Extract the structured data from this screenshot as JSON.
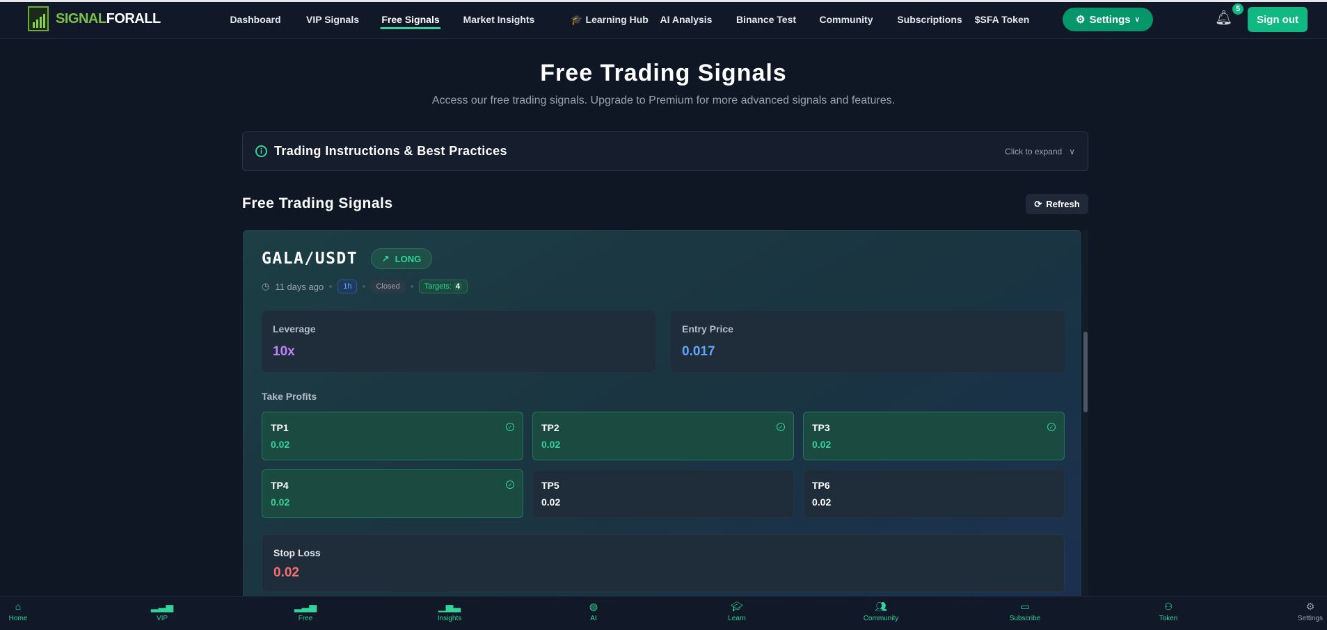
{
  "brand": {
    "part1": "SIGNAL",
    "part2": "FORALL"
  },
  "nav": {
    "items": [
      "Dashboard",
      "VIP Signals",
      "Free Signals",
      "Market Insights",
      "🎓 Learning Hub",
      "AI Analysis",
      "Binance Test",
      "Community",
      "Subscriptions",
      "$SFA Token"
    ],
    "active": "Free Signals",
    "settings": "Settings",
    "notifications": "5",
    "signout": "Sign out"
  },
  "page": {
    "title": "Free Trading Signals",
    "subtitle": "Access our free trading signals. Upgrade to Premium for more advanced signals and features."
  },
  "instructions": {
    "title": "Trading Instructions & Best Practices",
    "hint": "Click to expand"
  },
  "section": {
    "title": "Free Trading Signals",
    "refresh": "Refresh"
  },
  "signal": {
    "pair": "GALA/USDT",
    "direction": "LONG",
    "time": "11 days ago",
    "timeframe": "1h",
    "status": "Closed",
    "targets_label": "Targets:",
    "targets": "4",
    "leverage_label": "Leverage",
    "leverage": "10x",
    "entry_label": "Entry Price",
    "entry": "0.017",
    "tp_label": "Take Profits",
    "tps": [
      {
        "name": "TP1",
        "value": "0.02",
        "hit": true
      },
      {
        "name": "TP2",
        "value": "0.02",
        "hit": true
      },
      {
        "name": "TP3",
        "value": "0.02",
        "hit": true
      },
      {
        "name": "TP4",
        "value": "0.02",
        "hit": true
      },
      {
        "name": "TP5",
        "value": "0.02",
        "hit": false
      },
      {
        "name": "TP6",
        "value": "0.02",
        "hit": false
      }
    ],
    "sl_label": "Stop Loss",
    "sl": "0.02"
  },
  "colors": {
    "accent": "#10b981",
    "leverage": "#c084fc",
    "entry": "#60a5fa",
    "stop_loss": "#f87171"
  },
  "bottom_nav": [
    "Home",
    "VIP",
    "Free",
    "Insights",
    "AI",
    "Learn",
    "Community",
    "Subscribe",
    "Token",
    "Settings"
  ]
}
